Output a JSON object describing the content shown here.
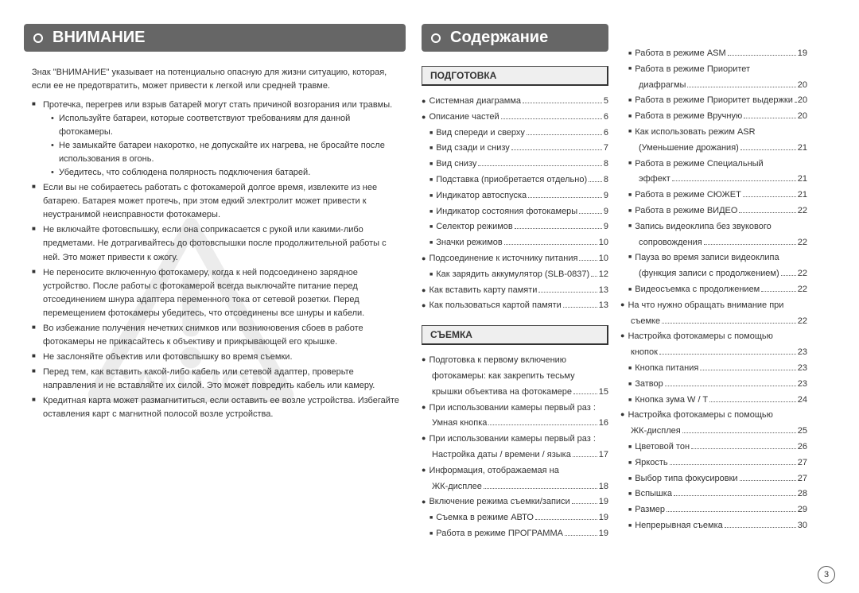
{
  "page_number": "3",
  "left": {
    "heading": "ВНИМАНИЕ",
    "intro": "Знак \"ВНИМАНИЕ\" указывает на потенциально опасную для жизни ситуацию, которая, если ее не предотвратить, может привести к легкой или средней травме.",
    "items": [
      {
        "text": "Протечка, перегрев или взрыв батарей могут стать причиной возгорания или травмы.",
        "sub": [
          "Используйте батареи, которые соответствуют требованиям для данной фотокамеры.",
          "Не замыкайте батареи накоротко, не допускайте их нагрева, не бросайте после использования в огонь.",
          "Убедитесь, что соблюдена полярность подключения батарей."
        ]
      },
      {
        "text": "Если вы не собираетесь работать с фотокамерой долгое время, извлеките из нее батарею. Батарея может протечь, при этом едкий электролит может привести к неустранимой неисправности фотокамеры."
      },
      {
        "text": "Не включайте фотовспышку, если она соприкасается с рукой или какими-либо предметами. Не дотрагивайтесь до фотовспышки после продолжительной работы с ней. Это может привести к ожогу."
      },
      {
        "text": "Не переносите включенную фотокамеру, когда к ней подсоединено зарядное устройство. После работы с фотокамерой всегда выключайте питание перед отсоединением шнура адаптера переменного тока от сетевой розетки. Перед перемещением фотокамеры убедитесь, что отсоединены все шнуры и кабели."
      },
      {
        "text": "Во избежание получения нечетких снимков или возникновения сбоев в работе фотокамеры не прикасайтесь к объективу и прикрывающей его крышке."
      },
      {
        "text": "Не заслоняйте объектив или фотовспышку во время съемки."
      },
      {
        "text": "Перед тем, как вставить какой-либо кабель или сетевой адаптер, проверьте направления и не вставляйте их силой. Это может повредить кабель или камеру."
      },
      {
        "text": "Кредитная карта может размагнититься, если оставить ее возле устройства. Избегайте оставления карт с магнитной полосой возле устройства."
      }
    ],
    "watermark_text": "CAUTION"
  },
  "right": {
    "heading": "Содержание",
    "sections": [
      {
        "title": "ПОДГОТОВКА",
        "items": [
          {
            "b": "circle",
            "label": "Системная диаграмма",
            "pg": "5"
          },
          {
            "b": "circle",
            "label": "Описание частей",
            "pg": "6"
          },
          {
            "b": "square",
            "indent": true,
            "label": "Вид спереди и сверху",
            "pg": "6"
          },
          {
            "b": "square",
            "indent": true,
            "label": "Вид сзади и снизу",
            "pg": "7"
          },
          {
            "b": "square",
            "indent": true,
            "label": "Вид снизу",
            "pg": "8"
          },
          {
            "b": "square",
            "indent": true,
            "label": "Подставка (приобретается отдельно)",
            "pg": "8",
            "tight": true
          },
          {
            "b": "square",
            "indent": true,
            "label": "Индикатор автоспуска",
            "pg": "9"
          },
          {
            "b": "square",
            "indent": true,
            "label": "Индикатор состояния фотокамеры",
            "pg": "9",
            "tight": true
          },
          {
            "b": "square",
            "indent": true,
            "label": "Селектор режимов",
            "pg": "9"
          },
          {
            "b": "square",
            "indent": true,
            "label": "Значки режимов",
            "pg": "10"
          },
          {
            "b": "circle",
            "label": "Подсоединение к источнику питания",
            "pg": "10",
            "tight": true
          },
          {
            "b": "square",
            "indent": true,
            "label": "Как зарядить аккумулятор (SLB-0837)",
            "pg": "12",
            "tight": true
          },
          {
            "b": "circle",
            "label": "Как вставить карту памяти",
            "pg": "13"
          },
          {
            "b": "circle",
            "label": "Как пользоваться картой памяти",
            "pg": "13",
            "tight": true
          }
        ]
      },
      {
        "title": "СЪЕМКА",
        "items": [
          {
            "b": "circle",
            "wrap": true,
            "line1": "Подготовка к первому включению",
            "line2": "фотокамеры: как закрепить тесьму",
            "line3": "крышки объектива на фотокамере",
            "pg": "15"
          },
          {
            "b": "circle",
            "wrap": true,
            "line1": "При использовании камеры первый раз :",
            "line3": "Умная кнопка",
            "pg": "16"
          },
          {
            "b": "circle",
            "wrap": true,
            "line1": "При использовании камеры первый раз :",
            "line3": "Настройка даты / времени / языка",
            "pg": "17"
          },
          {
            "b": "circle",
            "wrap": true,
            "line1": "Информация, отображаемая на",
            "line3": "ЖК-дисплее",
            "pg": "18"
          },
          {
            "b": "circle",
            "label": "Включение режима съемки/записи",
            "pg": "19",
            "tight": true
          },
          {
            "b": "square",
            "indent": true,
            "label": "Съемка в режиме АВТО",
            "pg": "19"
          },
          {
            "b": "square",
            "indent": true,
            "label": "Работа в режиме ПРОГРАММА",
            "pg": "19",
            "tight": true
          }
        ]
      }
    ],
    "col2_items": [
      {
        "b": "square",
        "indent": true,
        "label": "Работа в режиме ASM",
        "pg": "19"
      },
      {
        "b": "square",
        "indent": true,
        "wrap": true,
        "line1": "Работа в режиме Приоритет",
        "line3": "диафрагмы",
        "pg": "20"
      },
      {
        "b": "square",
        "indent": true,
        "label": "Работа в режиме Приоритет выдержки",
        "pg": "20",
        "tight": true
      },
      {
        "b": "square",
        "indent": true,
        "label": "Работа в режиме Вручную",
        "pg": "20"
      },
      {
        "b": "square",
        "indent": true,
        "wrap": true,
        "line1": "Как использовать режим ASR",
        "line3": "(Уменьшение дрожания)",
        "pg": "21"
      },
      {
        "b": "square",
        "indent": true,
        "wrap": true,
        "line1": "Работа в режиме Специальный",
        "line3": "эффект",
        "pg": "21"
      },
      {
        "b": "square",
        "indent": true,
        "label": "Работа в режиме СЮЖЕТ",
        "pg": "21"
      },
      {
        "b": "square",
        "indent": true,
        "label": "Работа в режиме ВИДЕО",
        "pg": "22"
      },
      {
        "b": "square",
        "indent": true,
        "wrap": true,
        "line1": "Запись видеоклипа без звукового",
        "line3": "сопровождения",
        "pg": "22"
      },
      {
        "b": "square",
        "indent": true,
        "wrap": true,
        "line1": "Пауза во время записи видеоклипа",
        "line3": "(функция записи с продолжением)",
        "pg": "22"
      },
      {
        "b": "square",
        "indent": true,
        "label": "Видеосъемка с продолжением",
        "pg": "22",
        "tight": true
      },
      {
        "b": "circle",
        "wrap": true,
        "line1": "На что нужно обращать внимание при",
        "line3": "съемке",
        "pg": "22"
      },
      {
        "b": "circle",
        "wrap": true,
        "line1": "Настройка фотокамеры с помощью",
        "line3": "кнопок",
        "pg": "23"
      },
      {
        "b": "square",
        "indent": true,
        "label": "Кнопка питания",
        "pg": "23"
      },
      {
        "b": "square",
        "indent": true,
        "label": "Затвор",
        "pg": "23"
      },
      {
        "b": "square",
        "indent": true,
        "label": "Кнопка зума W / T",
        "pg": "24"
      },
      {
        "b": "circle",
        "wrap": true,
        "line1": "Настройка фотокамеры с помощью",
        "line3": "ЖК-дисплея",
        "pg": "25"
      },
      {
        "b": "square",
        "indent": true,
        "label": "Цветовой тон",
        "pg": "26"
      },
      {
        "b": "square",
        "indent": true,
        "label": "Яркость",
        "pg": "27"
      },
      {
        "b": "square",
        "indent": true,
        "label": "Выбор типа фокусировки",
        "pg": "27"
      },
      {
        "b": "square",
        "indent": true,
        "label": "Вспышка",
        "pg": "28"
      },
      {
        "b": "square",
        "indent": true,
        "label": "Размер",
        "pg": "29"
      },
      {
        "b": "square",
        "indent": true,
        "label": "Непрерывная съемка",
        "pg": "30"
      }
    ]
  }
}
